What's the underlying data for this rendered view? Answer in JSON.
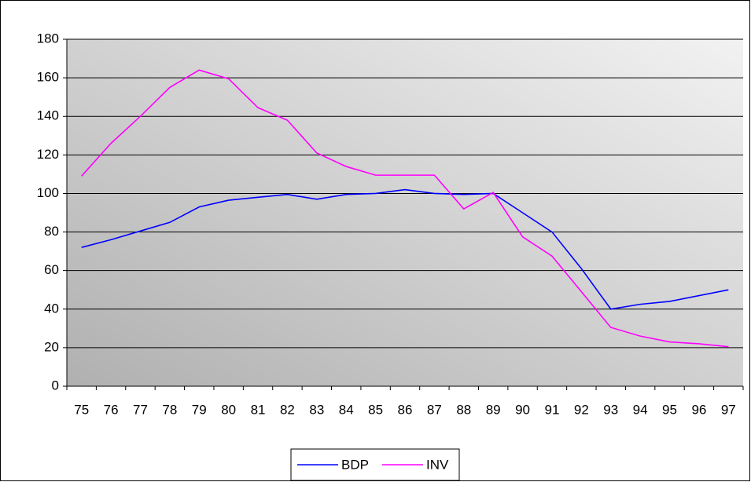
{
  "chart_data": {
    "type": "line",
    "categories": [
      "75",
      "76",
      "77",
      "78",
      "79",
      "80",
      "81",
      "82",
      "83",
      "84",
      "85",
      "86",
      "87",
      "88",
      "89",
      "90",
      "91",
      "92",
      "93",
      "94",
      "95",
      "96",
      "97"
    ],
    "series": [
      {
        "name": "BDP",
        "color": "#0000ff",
        "values": [
          72,
          76,
          80.5,
          85,
          93,
          96.5,
          98,
          99.5,
          97,
          99.5,
          100,
          102,
          100,
          99.5,
          100,
          90,
          80,
          61,
          40,
          42.5,
          44,
          47,
          50
        ]
      },
      {
        "name": "INV",
        "color": "#ff00ff",
        "values": [
          109,
          126,
          140,
          155,
          164,
          159.5,
          144.5,
          138,
          121,
          114,
          109.5,
          109.5,
          109.5,
          92,
          100.5,
          77.5,
          67.5,
          49,
          30.5,
          26,
          23,
          22,
          20.5
        ]
      }
    ],
    "ylim": [
      0,
      180
    ],
    "yticks": [
      0,
      20,
      40,
      60,
      80,
      100,
      120,
      140,
      160,
      180
    ],
    "grid": true,
    "legend": "bottom"
  }
}
